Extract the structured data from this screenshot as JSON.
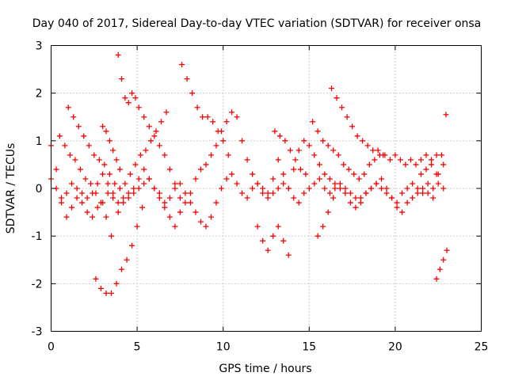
{
  "chart_data": {
    "type": "scatter",
    "title": "Day 040 of 2017, Sidereal Day-to-day VTEC variation (SDTVAR) for receiver onsa",
    "xlabel": "GPS time / hours",
    "ylabel": "SDTVAR / TECUs",
    "xlim": [
      0,
      25
    ],
    "ylim": [
      -3,
      3
    ],
    "x_ticks": [
      0,
      5,
      10,
      15,
      20,
      25
    ],
    "y_ticks": [
      -3,
      -2,
      -1,
      0,
      1,
      2,
      3
    ],
    "grid": true,
    "marker": "plus",
    "color": "#ff0000",
    "series": [
      {
        "x": [
          0.0,
          0.3,
          0.6,
          0.9,
          1.2,
          1.5,
          1.8,
          2.1,
          2.4,
          2.7,
          3.0,
          3.3,
          3.6,
          3.9,
          4.2,
          4.5,
          4.8,
          5.1,
          5.4,
          5.7,
          6.0,
          6.3,
          6.6,
          6.9,
          7.2,
          7.5,
          7.8,
          8.1,
          8.4,
          8.7,
          9.0,
          9.3,
          9.6,
          9.9,
          10.2,
          10.5,
          10.8,
          11.1,
          11.4,
          11.7,
          12.0,
          12.3,
          12.6,
          12.9,
          13.2,
          13.5,
          13.8,
          14.1,
          14.4,
          14.7,
          15.0,
          15.3,
          15.6,
          15.9,
          16.2,
          16.5,
          16.8,
          17.1,
          17.4,
          17.7,
          18.0,
          18.3,
          18.6,
          18.9,
          19.2,
          19.5,
          19.8,
          20.1,
          20.4,
          20.7,
          21.0,
          21.3,
          21.6,
          21.9,
          22.2,
          22.5,
          22.8
        ],
        "y": [
          0.9,
          0.4,
          -0.3,
          -0.6,
          -0.4,
          -0.2,
          -0.3,
          -0.5,
          -0.6,
          -0.4,
          -0.3,
          -0.1,
          -0.2,
          -0.5,
          -0.3,
          -0.2,
          -0.1,
          0.0,
          0.1,
          0.2,
          0.0,
          -0.2,
          -0.4,
          -0.6,
          -0.8,
          -0.5,
          -0.3,
          -0.1,
          0.2,
          0.4,
          0.5,
          0.7,
          0.9,
          1.2,
          1.4,
          1.6,
          1.5,
          1.0,
          0.6,
          0.3,
          0.1,
          0.0,
          -0.1,
          0.2,
          0.6,
          0.3,
          0.0,
          0.4,
          0.8,
          1.0,
          0.9,
          0.7,
          0.5,
          0.3,
          0.2,
          0.1,
          0.0,
          -0.1,
          -0.3,
          -0.4,
          -0.2,
          -0.1,
          0.0,
          0.1,
          0.2,
          0.0,
          -0.2,
          -0.4,
          -0.5,
          -0.3,
          -0.2,
          -0.1,
          0.0,
          0.1,
          -0.2,
          0.3,
          0.5
        ]
      },
      {
        "x": [
          0.0,
          0.3,
          0.6,
          0.9,
          1.2,
          1.5,
          1.8,
          2.1,
          2.4,
          2.7,
          3.0,
          3.3,
          3.6,
          3.9,
          4.2,
          4.5,
          4.8,
          5.1,
          5.4,
          5.7,
          6.0,
          6.3,
          6.6,
          6.9,
          7.2,
          7.5,
          7.8,
          8.1,
          8.4,
          8.7,
          9.0,
          9.3,
          9.6,
          9.9,
          10.2,
          10.5,
          10.8,
          11.1,
          11.4,
          11.7,
          12.0,
          12.3,
          12.6,
          12.9,
          13.2,
          13.5,
          13.8,
          14.1,
          14.4,
          14.7,
          15.0,
          15.3,
          15.6,
          15.9,
          16.2,
          16.5,
          16.8,
          17.1,
          17.4,
          17.7,
          18.0,
          18.3,
          18.6,
          18.9,
          19.2,
          19.5,
          19.8,
          20.1,
          20.4,
          20.7,
          21.0,
          21.3,
          21.6,
          21.9,
          22.2,
          22.5,
          22.8
        ],
        "y": [
          0.2,
          0.0,
          -0.2,
          -0.1,
          0.1,
          0.0,
          -0.1,
          -0.2,
          -0.1,
          0.1,
          0.3,
          0.1,
          -0.1,
          -0.3,
          -0.2,
          -0.1,
          0.0,
          0.2,
          0.4,
          0.2,
          0.0,
          -0.1,
          -0.3,
          -0.2,
          0.0,
          0.1,
          -0.1,
          -0.3,
          -0.5,
          -0.7,
          -0.8,
          -0.6,
          -0.3,
          0.0,
          0.2,
          0.3,
          0.1,
          -0.1,
          -0.2,
          0.0,
          0.1,
          -0.1,
          -0.2,
          -0.1,
          0.0,
          0.1,
          0.0,
          -0.2,
          -0.3,
          -0.1,
          0.0,
          0.1,
          0.2,
          0.0,
          -0.1,
          0.0,
          0.1,
          0.0,
          -0.1,
          -0.2,
          -0.3,
          -0.1,
          0.0,
          0.1,
          0.0,
          -0.1,
          -0.2,
          -0.3,
          -0.1,
          0.0,
          0.1,
          0.0,
          -0.1,
          -0.1,
          0.0,
          0.1,
          0.0
        ]
      },
      {
        "x": [
          0.5,
          0.8,
          1.1,
          1.4,
          1.7,
          2.0,
          2.3,
          2.6,
          2.9,
          3.2,
          3.5
        ],
        "y": [
          1.1,
          0.9,
          0.7,
          0.6,
          0.4,
          0.2,
          0.1,
          -0.1,
          -0.3,
          -0.6,
          -1.0
        ]
      },
      {
        "x": [
          1.0,
          1.3,
          1.6,
          1.9,
          2.2,
          2.5,
          2.8,
          3.1,
          3.4,
          3.7,
          4.0,
          4.3,
          4.6,
          4.9,
          5.2,
          5.5,
          5.8,
          6.1,
          6.4,
          6.7
        ],
        "y": [
          1.7,
          1.5,
          1.3,
          1.1,
          0.9,
          0.7,
          0.6,
          0.5,
          0.3,
          0.1,
          0.0,
          0.1,
          0.3,
          0.5,
          0.7,
          0.8,
          1.0,
          1.2,
          1.4,
          1.6
        ]
      },
      {
        "x": [
          2.6,
          2.9,
          3.2,
          3.5,
          3.8,
          4.1,
          4.4,
          4.7,
          5.0,
          5.3
        ],
        "y": [
          -1.9,
          -2.1,
          -2.2,
          -2.2,
          -2.0,
          -1.7,
          -1.5,
          -1.2,
          -0.8,
          -0.4
        ]
      },
      {
        "x": [
          3.0,
          3.2,
          3.4,
          3.6,
          3.8,
          4.0
        ],
        "y": [
          1.3,
          1.2,
          1.0,
          0.8,
          0.6,
          0.4
        ]
      },
      {
        "x": [
          3.9,
          4.1,
          4.3,
          4.5,
          4.7,
          4.9,
          5.1,
          5.4,
          5.7,
          6.0,
          6.3,
          6.6,
          6.9,
          7.2,
          7.5
        ],
        "y": [
          2.8,
          2.3,
          1.9,
          1.8,
          2.0,
          1.9,
          1.7,
          1.5,
          1.3,
          1.1,
          0.9,
          0.7,
          0.4,
          0.1,
          -0.2
        ]
      },
      {
        "x": [
          7.6,
          7.9,
          8.2,
          8.5,
          8.8,
          9.1,
          9.4,
          9.7,
          10.0,
          10.3
        ],
        "y": [
          2.6,
          2.3,
          2.0,
          1.7,
          1.5,
          1.5,
          1.4,
          1.2,
          1.0,
          0.7
        ]
      },
      {
        "x": [
          12.0,
          12.3,
          12.6,
          12.9,
          13.2,
          13.5,
          13.8
        ],
        "y": [
          -0.8,
          -1.1,
          -1.3,
          -1.0,
          -0.8,
          -1.1,
          -1.4
        ]
      },
      {
        "x": [
          13.0,
          13.3,
          13.6,
          13.9,
          14.2,
          14.5,
          14.8
        ],
        "y": [
          1.2,
          1.1,
          1.0,
          0.8,
          0.6,
          0.4,
          0.3
        ]
      },
      {
        "x": [
          15.2,
          15.5,
          15.8,
          16.1,
          16.4,
          16.7,
          17.0,
          17.3,
          17.6,
          17.9,
          18.2,
          18.5,
          18.8,
          19.1,
          19.4,
          19.7,
          20.0,
          20.3,
          20.6,
          20.9,
          21.2,
          21.5,
          21.8,
          22.1,
          22.4,
          22.7
        ],
        "y": [
          1.4,
          1.2,
          1.0,
          0.9,
          0.8,
          0.7,
          0.5,
          0.4,
          0.3,
          0.2,
          0.3,
          0.5,
          0.6,
          0.7,
          0.7,
          0.6,
          0.7,
          0.6,
          0.5,
          0.6,
          0.5,
          0.6,
          0.7,
          0.6,
          0.7,
          0.7
        ]
      },
      {
        "x": [
          15.5,
          15.8,
          16.1,
          16.4
        ],
        "y": [
          -1.0,
          -0.8,
          -0.5,
          -0.2
        ]
      },
      {
        "x": [
          16.3,
          16.6,
          16.9,
          17.2,
          17.5,
          17.8,
          18.1,
          18.4,
          18.7,
          19.0,
          19.3
        ],
        "y": [
          2.1,
          1.9,
          1.7,
          1.5,
          1.3,
          1.1,
          1.0,
          0.9,
          0.8,
          0.8,
          0.7
        ]
      },
      {
        "x": [
          21.5,
          21.8,
          22.1,
          22.4
        ],
        "y": [
          0.3,
          0.4,
          0.5,
          0.3
        ]
      },
      {
        "x": [
          22.4,
          22.6,
          22.8,
          23.0
        ],
        "y": [
          -1.9,
          -1.7,
          -1.5,
          -1.3
        ]
      },
      {
        "x": [
          22.95
        ],
        "y": [
          1.55
        ]
      }
    ]
  }
}
